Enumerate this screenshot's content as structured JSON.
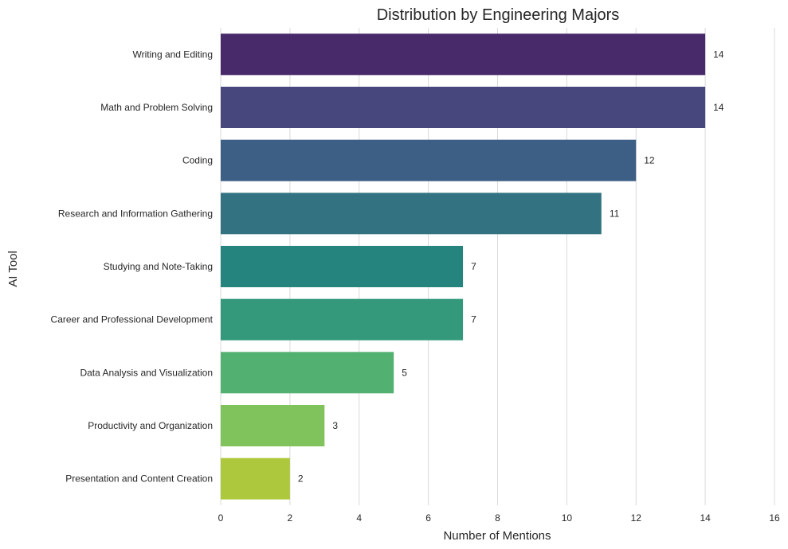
{
  "chart_data": {
    "type": "bar",
    "orientation": "horizontal",
    "title": "Distribution by Engineering Majors",
    "xlabel": "Number of Mentions",
    "ylabel": "AI Tool",
    "xlim": [
      0,
      16
    ],
    "xticks": [
      0,
      2,
      4,
      6,
      8,
      10,
      12,
      14,
      16
    ],
    "grid": "vertical",
    "categories": [
      "Writing and Editing",
      "Math and Problem Solving",
      "Coding",
      "Research and Information Gathering",
      "Studying and Note-Taking",
      "Career and Professional Development",
      "Data Analysis and Visualization",
      "Productivity and Organization",
      "Presentation and Content Creation"
    ],
    "values": [
      14,
      14,
      12,
      11,
      7,
      7,
      5,
      3,
      2
    ],
    "colors": [
      "#482a6b",
      "#47477e",
      "#3d5e85",
      "#327281",
      "#26847f",
      "#33997a",
      "#52b170",
      "#80c35d",
      "#adc83c"
    ]
  }
}
